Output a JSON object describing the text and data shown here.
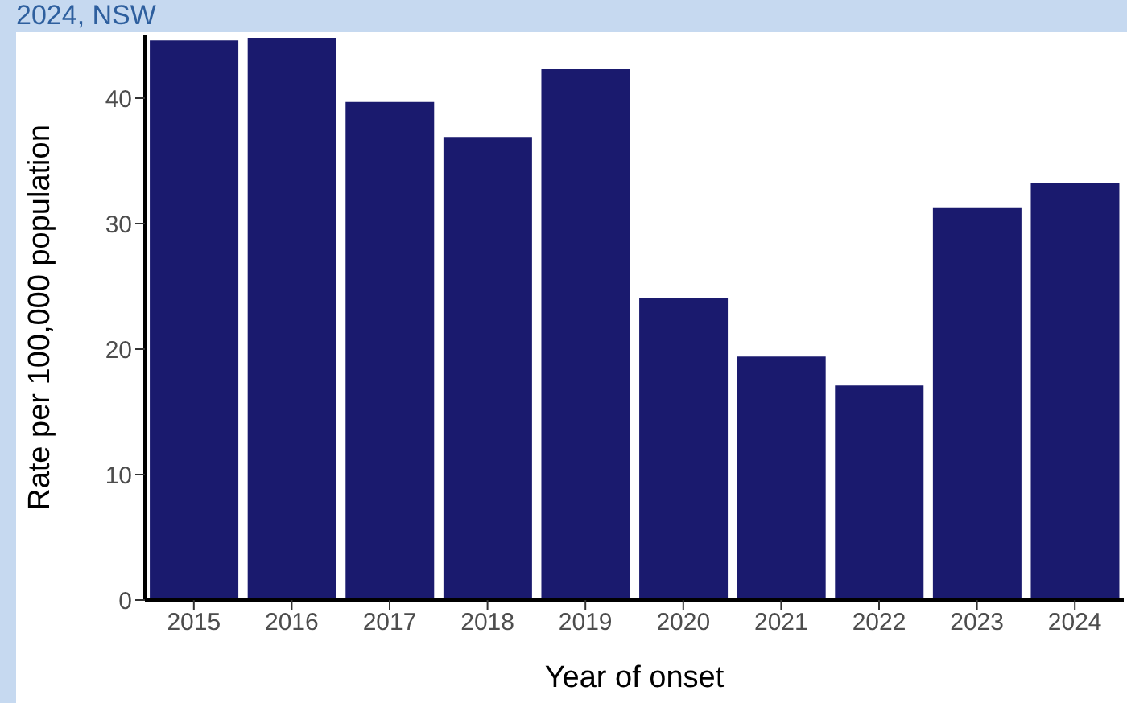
{
  "chart_data": {
    "type": "bar",
    "title": "2024, NSW",
    "xlabel": "Year of onset",
    "ylabel": "Rate per 100,000 population",
    "categories": [
      "2015",
      "2016",
      "2017",
      "2018",
      "2019",
      "2020",
      "2021",
      "2022",
      "2023",
      "2024"
    ],
    "values": [
      44.6,
      44.8,
      39.7,
      36.9,
      42.3,
      24.1,
      19.4,
      17.1,
      31.3,
      33.2
    ],
    "color": "#1a1a6e",
    "ylim": [
      0,
      45
    ],
    "yticks": [
      0,
      10,
      20,
      30,
      40
    ],
    "grid": false
  }
}
